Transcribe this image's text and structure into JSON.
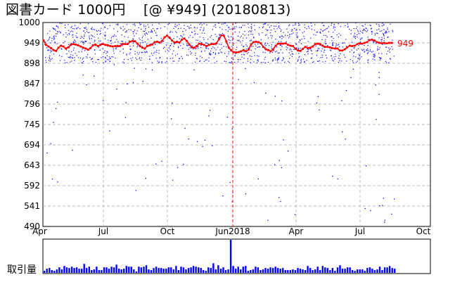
{
  "title": "図書カード 1000円　 [@ ¥949] (20180813)",
  "chart_data": {
    "type": "line",
    "title": "図書カード 1000円　 [@ ¥949] (20180813)",
    "current_price_label": "949",
    "current_price": 949,
    "y_ticks": [
      "1000",
      "949",
      "898",
      "847",
      "796",
      "745",
      "694",
      "643",
      "592",
      "541",
      "490"
    ],
    "ylim": [
      490,
      1000
    ],
    "x_ticks": [
      "Apr",
      "Jul",
      "Oct",
      "Jun2018",
      "Apr",
      "Jul",
      "Oct"
    ],
    "x_range": [
      "2017-04",
      "2018-10"
    ],
    "marker_date": "2018-01 (Jan)",
    "grid": true,
    "series": [
      {
        "color": "#ff0000",
        "values": [
          955,
          944,
          940,
          936,
          931,
          929,
          937,
          942,
          940,
          935,
          938,
          944,
          946,
          945,
          943,
          940,
          937,
          935,
          932,
          936,
          943,
          945,
          941,
          944,
          946,
          944,
          943,
          941,
          940,
          941,
          941,
          941,
          946,
          946,
          946,
          952,
          954,
          953,
          947,
          941,
          937,
          935,
          941,
          943,
          945,
          951,
          952,
          950,
          954,
          963,
          967,
          962,
          955,
          950,
          952,
          950,
          957,
          960,
          954,
          945,
          938,
          937,
          941,
          947,
          946,
          944,
          941,
          944,
          946,
          946,
          948,
          958,
          968,
          967,
          953,
          937,
          930,
          926,
          925,
          926,
          928,
          931,
          928,
          932,
          945,
          951,
          952,
          951,
          948,
          939,
          933,
          931,
          928,
          933,
          942,
          947,
          947,
          947,
          948,
          944,
          942,
          941,
          934,
          930,
          929,
          934,
          939,
          936,
          937,
          940,
          946,
          947,
          946,
          942,
          939,
          939,
          938,
          936,
          935,
          935,
          930,
          930,
          933,
          938,
          942,
          941,
          942,
          946,
          948,
          947,
          949,
          951,
          956,
          957,
          955,
          951,
          949,
          948,
          949,
          948,
          949,
          949
        ]
      },
      {
        "color": "#0000ff",
        "name": "取引量",
        "values": [
          3,
          6,
          7,
          4,
          3,
          5,
          8,
          5,
          10,
          8,
          7,
          9,
          7,
          8,
          6,
          6,
          13,
          7,
          9,
          4,
          5,
          9,
          4,
          4,
          8,
          8,
          6,
          9,
          8,
          12,
          6,
          5,
          6,
          10,
          9,
          9,
          5,
          2,
          9,
          8,
          9,
          11,
          5,
          4,
          7,
          9,
          7,
          7,
          6,
          6,
          8,
          8,
          5,
          10,
          4,
          9,
          8,
          5,
          7,
          8,
          10,
          9,
          8,
          7,
          4,
          3,
          8,
          7,
          14,
          5,
          11,
          6,
          8,
          4,
          5,
          48,
          10,
          6,
          9,
          5,
          9,
          10,
          3,
          4,
          5,
          9,
          8,
          4,
          5,
          7,
          6,
          8,
          7,
          9,
          7,
          6,
          7,
          4,
          4,
          4,
          5,
          4,
          7,
          6,
          5,
          4,
          10,
          7,
          4,
          5,
          9,
          4,
          10,
          8,
          7,
          4,
          7,
          3,
          8,
          11,
          6,
          6,
          8,
          8,
          4,
          3,
          5,
          5,
          5,
          3,
          7,
          8,
          6,
          4,
          5,
          9,
          4,
          8,
          8,
          10,
          7,
          6
        ]
      }
    ]
  },
  "volume_label": "取引量"
}
